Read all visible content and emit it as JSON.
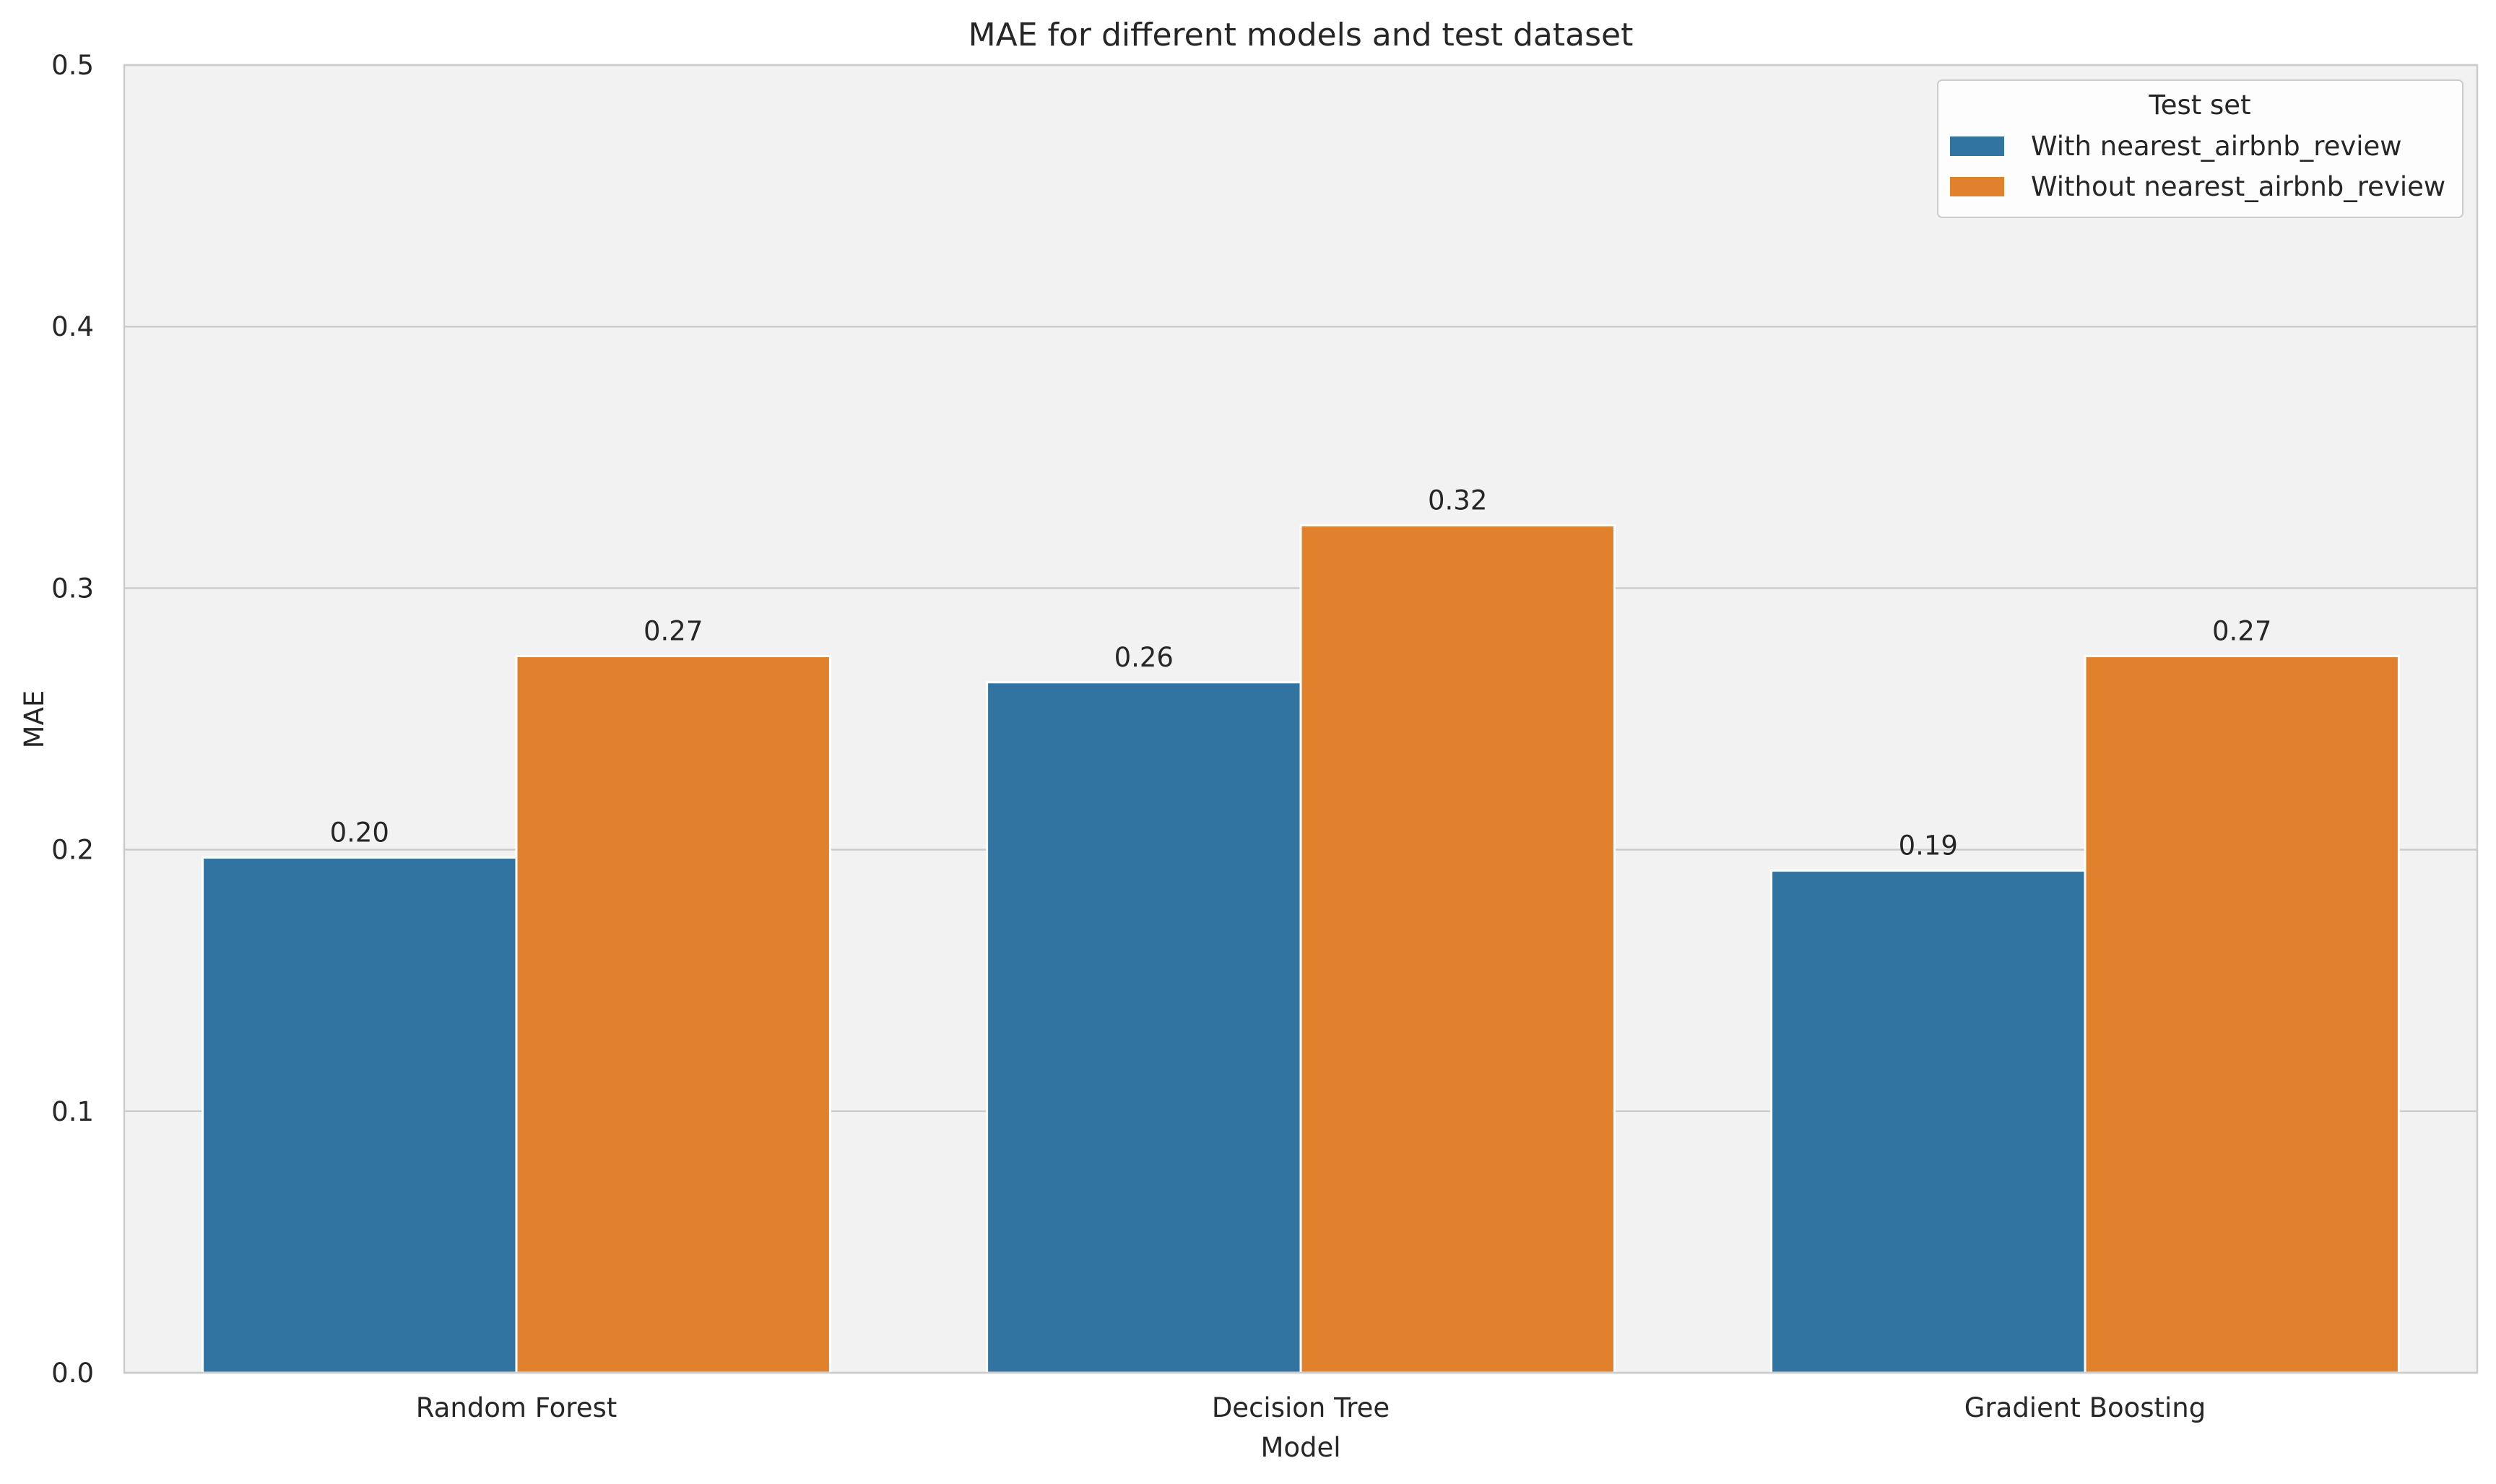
{
  "chart_data": {
    "type": "bar",
    "title": "MAE for different models and test dataset",
    "xlabel": "Model",
    "ylabel": "MAE",
    "ylim": [
      0,
      0.5
    ],
    "yticks": [
      0.0,
      0.1,
      0.2,
      0.3,
      0.4,
      0.5
    ],
    "ytick_labels": [
      "0.0",
      "0.1",
      "0.2",
      "0.3",
      "0.4",
      "0.5"
    ],
    "grid": true,
    "categories": [
      "Random Forest",
      "Decision Tree",
      "Gradient Boosting"
    ],
    "series": [
      {
        "name": "With nearest_airbnb_review",
        "color": "#3274a1",
        "values": [
          0.197,
          0.264,
          0.192
        ],
        "labels": [
          "0.20",
          "0.26",
          "0.19"
        ]
      },
      {
        "name": "Without nearest_airbnb_review",
        "color": "#e1812c",
        "values": [
          0.274,
          0.324,
          0.274
        ],
        "labels": [
          "0.27",
          "0.32",
          "0.27"
        ]
      }
    ],
    "legend": {
      "title": "Test set",
      "placement": "top-right"
    },
    "colors": {
      "plot_background": "#f2f2f2",
      "grid": "#cccccc",
      "frame": "#cccccc",
      "text": "#262626"
    }
  }
}
